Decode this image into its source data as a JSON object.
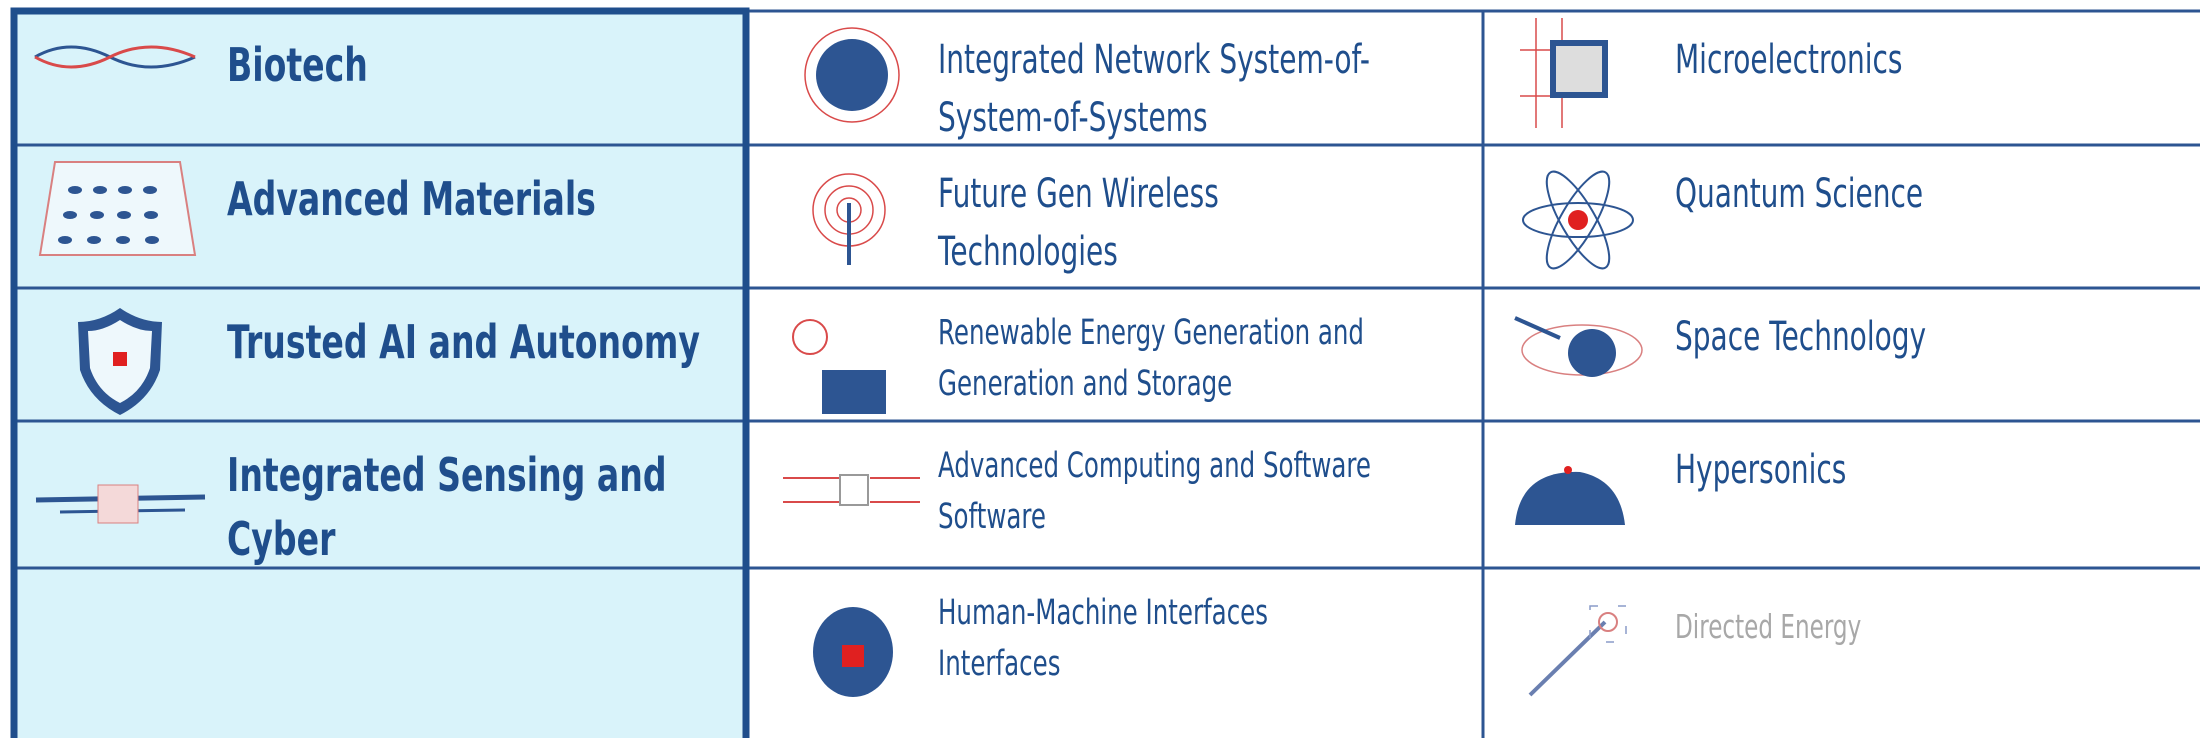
{
  "grid": {
    "columns": [
      {
        "cells": [
          {
            "lines": [
              "Biotech"
            ]
          },
          {
            "lines": [
              "Advanced Materials"
            ]
          },
          {
            "lines": [
              "Trusted AI and Autonomy"
            ]
          },
          {
            "lines": [
              "Integrated Sensing and",
              "Cyber"
            ]
          }
        ]
      },
      {
        "cells": [
          {
            "lines": [
              "Integrated Network System-of-",
              "System-of-Systems"
            ]
          },
          {
            "lines": [
              "Future Gen Wireless",
              "Technologies"
            ]
          },
          {
            "lines": [
              "Renewable Energy Generation and",
              "Generation and Storage"
            ]
          },
          {
            "lines": [
              "Advanced Computing and Software",
              "Software"
            ]
          },
          {
            "lines": [
              "Human-Machine Interfaces",
              "Interfaces"
            ]
          }
        ]
      },
      {
        "cells": [
          {
            "lines": [
              "Microelectronics"
            ]
          },
          {
            "lines": [
              "Quantum Science"
            ]
          },
          {
            "lines": [
              "Space Technology"
            ]
          },
          {
            "lines": [
              "Hypersonics"
            ]
          },
          {
            "lines": [
              "Directed Energy"
            ]
          }
        ]
      }
    ]
  }
}
